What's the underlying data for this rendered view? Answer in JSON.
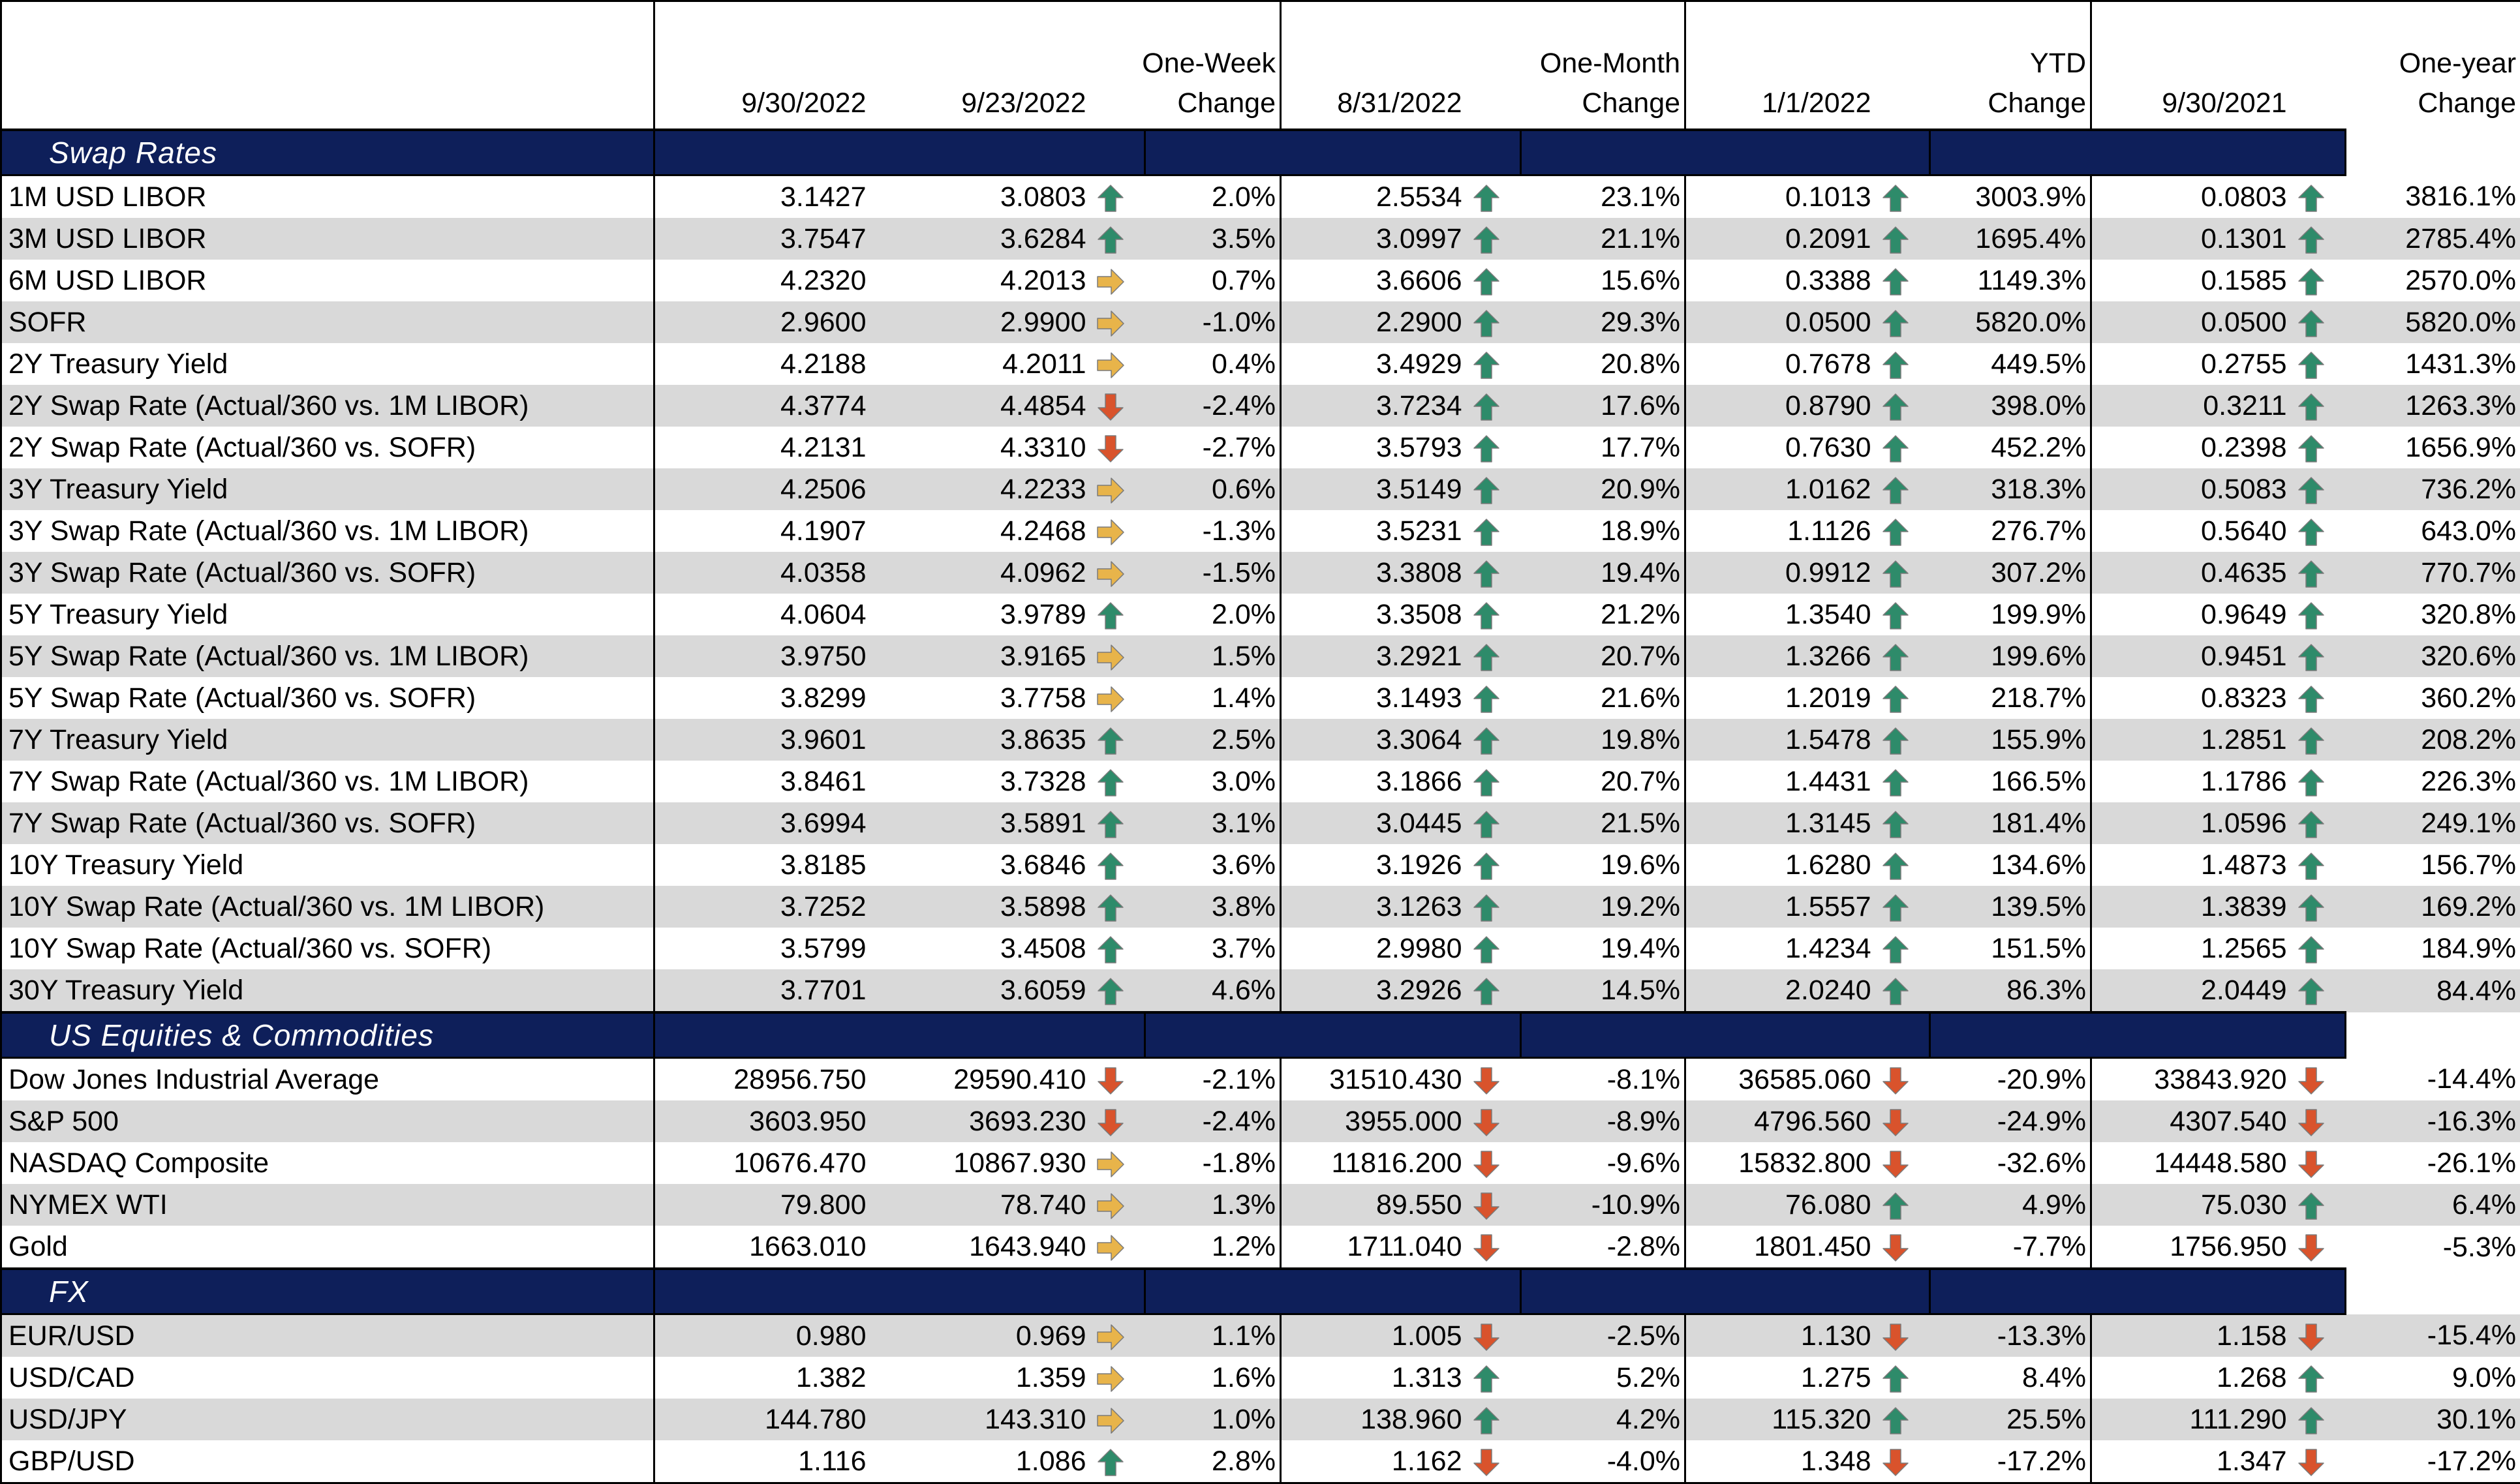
{
  "header": {
    "col1": "9/30/2022",
    "col2": "9/23/2022",
    "col3_line1": "One-Week",
    "col3_line2": "Change",
    "col4": "8/31/2022",
    "col5_line1": "One-Month",
    "col5_line2": "Change",
    "col6": "1/1/2022",
    "col7_line1": "YTD",
    "col7_line2": "Change",
    "col8": "9/30/2021",
    "col9_line1": "One-year",
    "col9_line2": "Change"
  },
  "colors": {
    "section_bg": "#0e1f5a",
    "alt_row": "#d9d9d9",
    "up": "#2e8b6a",
    "down": "#d9532c",
    "flat": "#e8b44a"
  },
  "sections": [
    {
      "title": "Swap Rates",
      "rows": [
        {
          "name": "1M USD LIBOR",
          "v1": "3.1427",
          "v2": "3.0803",
          "a1": "up",
          "p1": "2.0%",
          "v3": "2.5534",
          "a2": "up",
          "p2": "23.1%",
          "v4": "0.1013",
          "a3": "up",
          "p3": "3003.9%",
          "v5": "0.0803",
          "a4": "up",
          "p4": "3816.1%"
        },
        {
          "name": "3M USD LIBOR",
          "v1": "3.7547",
          "v2": "3.6284",
          "a1": "up",
          "p1": "3.5%",
          "v3": "3.0997",
          "a2": "up",
          "p2": "21.1%",
          "v4": "0.2091",
          "a3": "up",
          "p3": "1695.4%",
          "v5": "0.1301",
          "a4": "up",
          "p4": "2785.4%"
        },
        {
          "name": "6M USD LIBOR",
          "v1": "4.2320",
          "v2": "4.2013",
          "a1": "flat",
          "p1": "0.7%",
          "v3": "3.6606",
          "a2": "up",
          "p2": "15.6%",
          "v4": "0.3388",
          "a3": "up",
          "p3": "1149.3%",
          "v5": "0.1585",
          "a4": "up",
          "p4": "2570.0%"
        },
        {
          "name": "SOFR",
          "v1": "2.9600",
          "v2": "2.9900",
          "a1": "flat",
          "p1": "-1.0%",
          "v3": "2.2900",
          "a2": "up",
          "p2": "29.3%",
          "v4": "0.0500",
          "a3": "up",
          "p3": "5820.0%",
          "v5": "0.0500",
          "a4": "up",
          "p4": "5820.0%"
        },
        {
          "name": "2Y Treasury Yield",
          "v1": "4.2188",
          "v2": "4.2011",
          "a1": "flat",
          "p1": "0.4%",
          "v3": "3.4929",
          "a2": "up",
          "p2": "20.8%",
          "v4": "0.7678",
          "a3": "up",
          "p3": "449.5%",
          "v5": "0.2755",
          "a4": "up",
          "p4": "1431.3%"
        },
        {
          "name": "2Y Swap Rate (Actual/360 vs. 1M LIBOR)",
          "v1": "4.3774",
          "v2": "4.4854",
          "a1": "down",
          "p1": "-2.4%",
          "v3": "3.7234",
          "a2": "up",
          "p2": "17.6%",
          "v4": "0.8790",
          "a3": "up",
          "p3": "398.0%",
          "v5": "0.3211",
          "a4": "up",
          "p4": "1263.3%"
        },
        {
          "name": "2Y Swap Rate (Actual/360 vs. SOFR)",
          "v1": "4.2131",
          "v2": "4.3310",
          "a1": "down",
          "p1": "-2.7%",
          "v3": "3.5793",
          "a2": "up",
          "p2": "17.7%",
          "v4": "0.7630",
          "a3": "up",
          "p3": "452.2%",
          "v5": "0.2398",
          "a4": "up",
          "p4": "1656.9%"
        },
        {
          "name": "3Y Treasury Yield",
          "v1": "4.2506",
          "v2": "4.2233",
          "a1": "flat",
          "p1": "0.6%",
          "v3": "3.5149",
          "a2": "up",
          "p2": "20.9%",
          "v4": "1.0162",
          "a3": "up",
          "p3": "318.3%",
          "v5": "0.5083",
          "a4": "up",
          "p4": "736.2%"
        },
        {
          "name": "3Y Swap Rate (Actual/360 vs. 1M LIBOR)",
          "v1": "4.1907",
          "v2": "4.2468",
          "a1": "flat",
          "p1": "-1.3%",
          "v3": "3.5231",
          "a2": "up",
          "p2": "18.9%",
          "v4": "1.1126",
          "a3": "up",
          "p3": "276.7%",
          "v5": "0.5640",
          "a4": "up",
          "p4": "643.0%"
        },
        {
          "name": "3Y Swap Rate (Actual/360 vs. SOFR)",
          "v1": "4.0358",
          "v2": "4.0962",
          "a1": "flat",
          "p1": "-1.5%",
          "v3": "3.3808",
          "a2": "up",
          "p2": "19.4%",
          "v4": "0.9912",
          "a3": "up",
          "p3": "307.2%",
          "v5": "0.4635",
          "a4": "up",
          "p4": "770.7%"
        },
        {
          "name": "5Y Treasury Yield",
          "v1": "4.0604",
          "v2": "3.9789",
          "a1": "up",
          "p1": "2.0%",
          "v3": "3.3508",
          "a2": "up",
          "p2": "21.2%",
          "v4": "1.3540",
          "a3": "up",
          "p3": "199.9%",
          "v5": "0.9649",
          "a4": "up",
          "p4": "320.8%"
        },
        {
          "name": "5Y Swap Rate (Actual/360 vs. 1M LIBOR)",
          "v1": "3.9750",
          "v2": "3.9165",
          "a1": "flat",
          "p1": "1.5%",
          "v3": "3.2921",
          "a2": "up",
          "p2": "20.7%",
          "v4": "1.3266",
          "a3": "up",
          "p3": "199.6%",
          "v5": "0.9451",
          "a4": "up",
          "p4": "320.6%"
        },
        {
          "name": "5Y Swap Rate (Actual/360 vs. SOFR)",
          "v1": "3.8299",
          "v2": "3.7758",
          "a1": "flat",
          "p1": "1.4%",
          "v3": "3.1493",
          "a2": "up",
          "p2": "21.6%",
          "v4": "1.2019",
          "a3": "up",
          "p3": "218.7%",
          "v5": "0.8323",
          "a4": "up",
          "p4": "360.2%"
        },
        {
          "name": "7Y Treasury Yield",
          "v1": "3.9601",
          "v2": "3.8635",
          "a1": "up",
          "p1": "2.5%",
          "v3": "3.3064",
          "a2": "up",
          "p2": "19.8%",
          "v4": "1.5478",
          "a3": "up",
          "p3": "155.9%",
          "v5": "1.2851",
          "a4": "up",
          "p4": "208.2%"
        },
        {
          "name": "7Y Swap Rate (Actual/360 vs. 1M LIBOR)",
          "v1": "3.8461",
          "v2": "3.7328",
          "a1": "up",
          "p1": "3.0%",
          "v3": "3.1866",
          "a2": "up",
          "p2": "20.7%",
          "v4": "1.4431",
          "a3": "up",
          "p3": "166.5%",
          "v5": "1.1786",
          "a4": "up",
          "p4": "226.3%"
        },
        {
          "name": "7Y Swap Rate (Actual/360 vs. SOFR)",
          "v1": "3.6994",
          "v2": "3.5891",
          "a1": "up",
          "p1": "3.1%",
          "v3": "3.0445",
          "a2": "up",
          "p2": "21.5%",
          "v4": "1.3145",
          "a3": "up",
          "p3": "181.4%",
          "v5": "1.0596",
          "a4": "up",
          "p4": "249.1%"
        },
        {
          "name": "10Y Treasury Yield",
          "v1": "3.8185",
          "v2": "3.6846",
          "a1": "up",
          "p1": "3.6%",
          "v3": "3.1926",
          "a2": "up",
          "p2": "19.6%",
          "v4": "1.6280",
          "a3": "up",
          "p3": "134.6%",
          "v5": "1.4873",
          "a4": "up",
          "p4": "156.7%"
        },
        {
          "name": "10Y Swap Rate (Actual/360 vs. 1M LIBOR)",
          "v1": "3.7252",
          "v2": "3.5898",
          "a1": "up",
          "p1": "3.8%",
          "v3": "3.1263",
          "a2": "up",
          "p2": "19.2%",
          "v4": "1.5557",
          "a3": "up",
          "p3": "139.5%",
          "v5": "1.3839",
          "a4": "up",
          "p4": "169.2%"
        },
        {
          "name": "10Y Swap Rate (Actual/360 vs. SOFR)",
          "v1": "3.5799",
          "v2": "3.4508",
          "a1": "up",
          "p1": "3.7%",
          "v3": "2.9980",
          "a2": "up",
          "p2": "19.4%",
          "v4": "1.4234",
          "a3": "up",
          "p3": "151.5%",
          "v5": "1.2565",
          "a4": "up",
          "p4": "184.9%"
        },
        {
          "name": "30Y Treasury Yield",
          "v1": "3.7701",
          "v2": "3.6059",
          "a1": "up",
          "p1": "4.6%",
          "v3": "3.2926",
          "a2": "up",
          "p2": "14.5%",
          "v4": "2.0240",
          "a3": "up",
          "p3": "86.3%",
          "v5": "2.0449",
          "a4": "up",
          "p4": "84.4%"
        }
      ]
    },
    {
      "title": "US Equities & Commodities",
      "rows": [
        {
          "name": "Dow Jones Industrial Average",
          "v1": "28956.750",
          "v2": "29590.410",
          "a1": "down",
          "p1": "-2.1%",
          "v3": "31510.430",
          "a2": "down",
          "p2": "-8.1%",
          "v4": "36585.060",
          "a3": "down",
          "p3": "-20.9%",
          "v5": "33843.920",
          "a4": "down",
          "p4": "-14.4%"
        },
        {
          "name": "S&P 500",
          "v1": "3603.950",
          "v2": "3693.230",
          "a1": "down",
          "p1": "-2.4%",
          "v3": "3955.000",
          "a2": "down",
          "p2": "-8.9%",
          "v4": "4796.560",
          "a3": "down",
          "p3": "-24.9%",
          "v5": "4307.540",
          "a4": "down",
          "p4": "-16.3%"
        },
        {
          "name": "NASDAQ Composite",
          "v1": "10676.470",
          "v2": "10867.930",
          "a1": "flat",
          "p1": "-1.8%",
          "v3": "11816.200",
          "a2": "down",
          "p2": "-9.6%",
          "v4": "15832.800",
          "a3": "down",
          "p3": "-32.6%",
          "v5": "14448.580",
          "a4": "down",
          "p4": "-26.1%"
        },
        {
          "name": "NYMEX WTI",
          "v1": "79.800",
          "v2": "78.740",
          "a1": "flat",
          "p1": "1.3%",
          "v3": "89.550",
          "a2": "down",
          "p2": "-10.9%",
          "v4": "76.080",
          "a3": "up",
          "p3": "4.9%",
          "v5": "75.030",
          "a4": "up",
          "p4": "6.4%"
        },
        {
          "name": "Gold",
          "v1": "1663.010",
          "v2": "1643.940",
          "a1": "flat",
          "p1": "1.2%",
          "v3": "1711.040",
          "a2": "down",
          "p2": "-2.8%",
          "v4": "1801.450",
          "a3": "down",
          "p3": "-7.7%",
          "v5": "1756.950",
          "a4": "down",
          "p4": "-5.3%"
        }
      ]
    },
    {
      "title": "FX",
      "rows": [
        {
          "name": "EUR/USD",
          "v1": "0.980",
          "v2": "0.969",
          "a1": "flat",
          "p1": "1.1%",
          "v3": "1.005",
          "a2": "down",
          "p2": "-2.5%",
          "v4": "1.130",
          "a3": "down",
          "p3": "-13.3%",
          "v5": "1.158",
          "a4": "down",
          "p4": "-15.4%"
        },
        {
          "name": "USD/CAD",
          "v1": "1.382",
          "v2": "1.359",
          "a1": "flat",
          "p1": "1.6%",
          "v3": "1.313",
          "a2": "up",
          "p2": "5.2%",
          "v4": "1.275",
          "a3": "up",
          "p3": "8.4%",
          "v5": "1.268",
          "a4": "up",
          "p4": "9.0%"
        },
        {
          "name": "USD/JPY",
          "v1": "144.780",
          "v2": "143.310",
          "a1": "flat",
          "p1": "1.0%",
          "v3": "138.960",
          "a2": "up",
          "p2": "4.2%",
          "v4": "115.320",
          "a3": "up",
          "p3": "25.5%",
          "v5": "111.290",
          "a4": "up",
          "p4": "30.1%"
        },
        {
          "name": "GBP/USD",
          "v1": "1.116",
          "v2": "1.086",
          "a1": "up",
          "p1": "2.8%",
          "v3": "1.162",
          "a2": "down",
          "p2": "-4.0%",
          "v4": "1.348",
          "a3": "down",
          "p3": "-17.2%",
          "v5": "1.347",
          "a4": "down",
          "p4": "-17.2%"
        }
      ]
    }
  ]
}
